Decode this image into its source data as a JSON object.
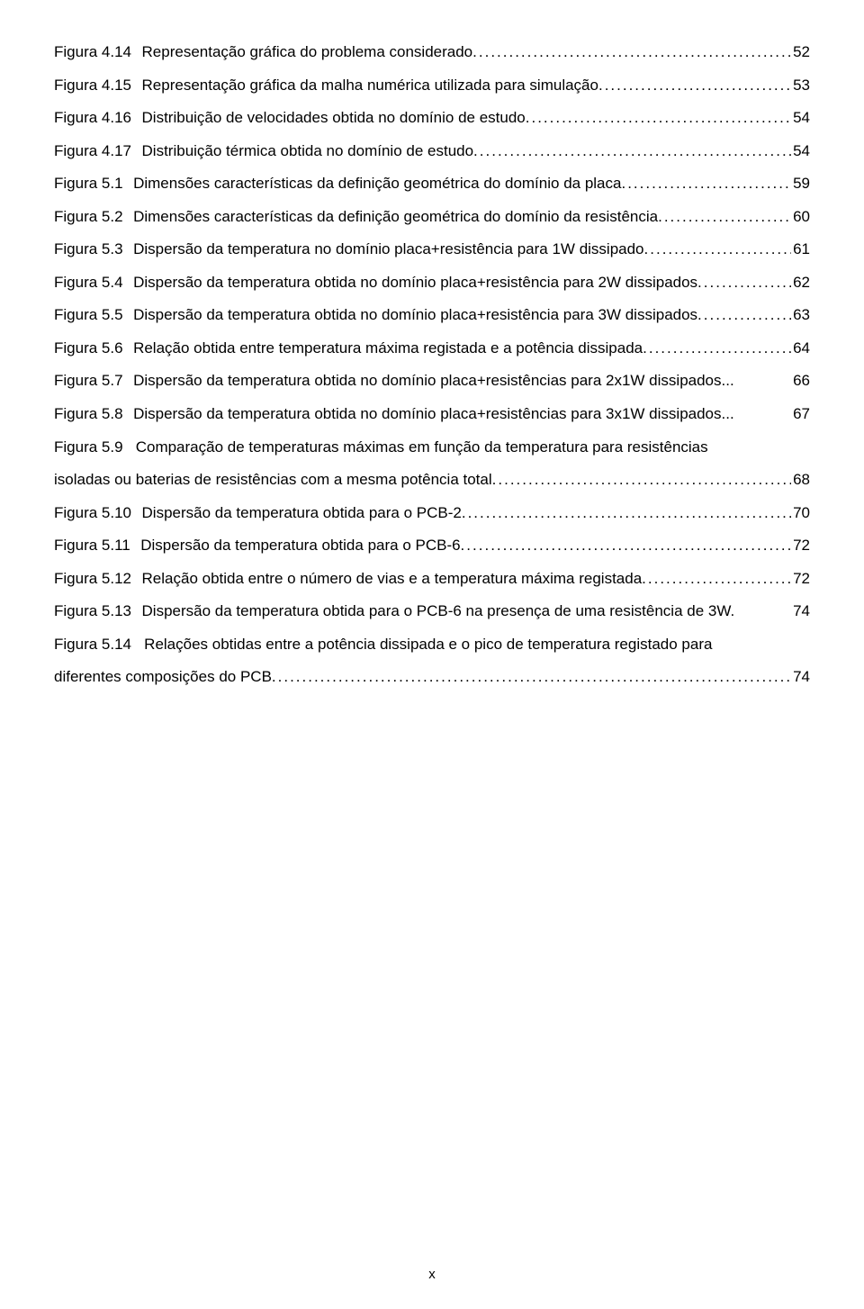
{
  "entries": [
    {
      "label": "Figura 4.14",
      "desc": "Representação gráfica do problema considerado.",
      "page": "52"
    },
    {
      "label": "Figura 4.15",
      "desc": "Representação gráfica da malha numérica utilizada para simulação.",
      "page": "53"
    },
    {
      "label": "Figura 4.16",
      "desc": "Distribuição de velocidades obtida no domínio de estudo.",
      "page": "54"
    },
    {
      "label": "Figura 4.17",
      "desc": "Distribuição térmica obtida no domínio de estudo.",
      "page": "54"
    },
    {
      "label": "Figura 5.1",
      "desc": "Dimensões características da definição geométrica do domínio da placa.",
      "page": "59"
    },
    {
      "label": "Figura 5.2",
      "desc": "Dimensões características da definição geométrica do domínio da resistência.",
      "page": "60"
    },
    {
      "label": "Figura 5.3",
      "desc": "Dispersão da temperatura no domínio placa+resistência para 1W dissipado.",
      "page": "61"
    },
    {
      "label": "Figura 5.4",
      "desc": "Dispersão da temperatura obtida no domínio placa+resistência para 2W dissipados.",
      "page": "62"
    },
    {
      "label": "Figura 5.5",
      "desc": "Dispersão da temperatura obtida no domínio placa+resistência para 3W dissipados.",
      "page": "63"
    },
    {
      "label": "Figura 5.6",
      "desc": "Relação obtida entre temperatura máxima registada e a potência dissipada.",
      "page": "64"
    },
    {
      "label": "Figura 5.7",
      "desc": "Dispersão da temperatura obtida no domínio placa+resistências para 2x1W dissipados.",
      "page": "66",
      "sep": ".."
    },
    {
      "label": "Figura 5.8",
      "desc": "Dispersão da temperatura obtida no domínio placa+resistências para 3x1W dissipados.",
      "page": "67",
      "sep": ".."
    }
  ],
  "wrap1": {
    "label": "Figura 5.9",
    "line1": "Comparação  de  temperaturas  máximas  em  função  da  temperatura  para  resistências",
    "line2": "isoladas ou baterias de resistências com a mesma potência total.",
    "page": "68"
  },
  "entries2": [
    {
      "label": "Figura 5.10",
      "desc": "Dispersão da temperatura obtida para o PCB-2.",
      "page": "70"
    },
    {
      "label": "Figura 5.11",
      "desc": "Dispersão da temperatura obtida para o PCB-6.",
      "page": "72"
    },
    {
      "label": "Figura 5.12",
      "desc": "Relação obtida entre o número de vias e a temperatura máxima registada.",
      "page": "72"
    },
    {
      "label": "Figura 5.13",
      "desc": "Dispersão da temperatura obtida para o PCB-6 na presença de uma resistência de 3W.",
      "page": "74",
      "nodots": true
    }
  ],
  "wrap2": {
    "label": "Figura 5.14",
    "line1": "Relações  obtidas  entre  a  potência  dissipada  e  o  pico  de  temperatura  registado  para",
    "line2": "diferentes composições do PCB.",
    "page": "74"
  },
  "footer": "x"
}
